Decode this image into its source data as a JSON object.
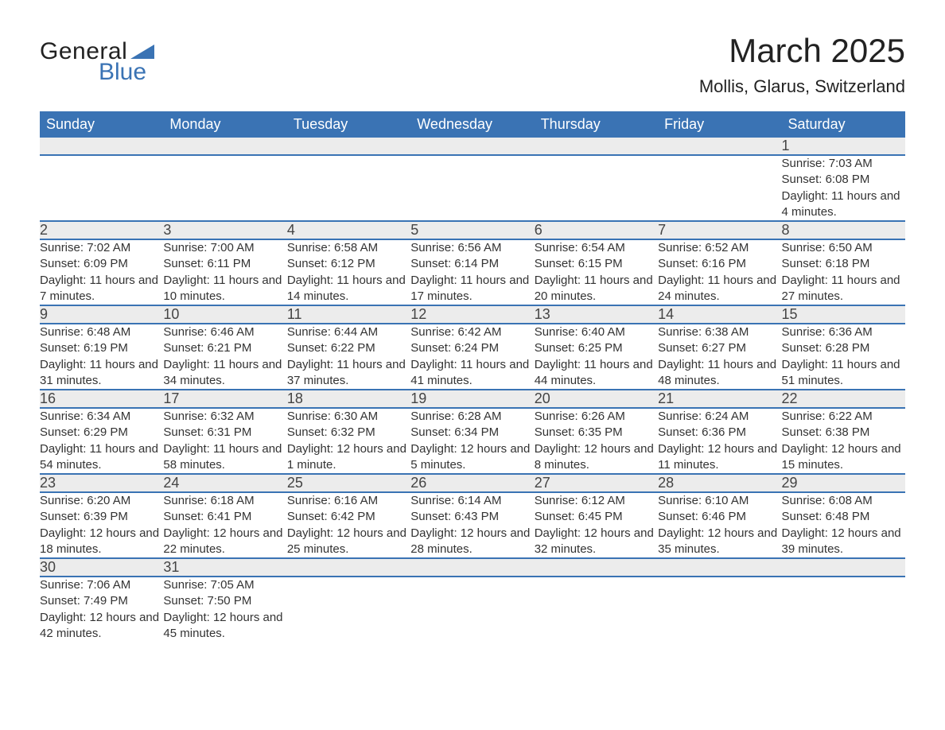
{
  "logo": {
    "text1": "General",
    "text2": "Blue",
    "accent_color": "#3a73b4"
  },
  "title": "March 2025",
  "location": "Mollis, Glarus, Switzerland",
  "colors": {
    "header_bg": "#3a73b4",
    "header_text": "#ffffff",
    "daynum_bg": "#ececec",
    "border": "#3a73b4",
    "text": "#333333"
  },
  "font": {
    "family": "Arial",
    "th_size": 18,
    "title_size": 42,
    "location_size": 22,
    "body_size": 15
  },
  "weekdays": [
    "Sunday",
    "Monday",
    "Tuesday",
    "Wednesday",
    "Thursday",
    "Friday",
    "Saturday"
  ],
  "weeks": [
    [
      null,
      null,
      null,
      null,
      null,
      null,
      {
        "n": "1",
        "sr": "Sunrise: 7:03 AM",
        "ss": "Sunset: 6:08 PM",
        "dl": "Daylight: 11 hours and 4 minutes."
      }
    ],
    [
      {
        "n": "2",
        "sr": "Sunrise: 7:02 AM",
        "ss": "Sunset: 6:09 PM",
        "dl": "Daylight: 11 hours and 7 minutes."
      },
      {
        "n": "3",
        "sr": "Sunrise: 7:00 AM",
        "ss": "Sunset: 6:11 PM",
        "dl": "Daylight: 11 hours and 10 minutes."
      },
      {
        "n": "4",
        "sr": "Sunrise: 6:58 AM",
        "ss": "Sunset: 6:12 PM",
        "dl": "Daylight: 11 hours and 14 minutes."
      },
      {
        "n": "5",
        "sr": "Sunrise: 6:56 AM",
        "ss": "Sunset: 6:14 PM",
        "dl": "Daylight: 11 hours and 17 minutes."
      },
      {
        "n": "6",
        "sr": "Sunrise: 6:54 AM",
        "ss": "Sunset: 6:15 PM",
        "dl": "Daylight: 11 hours and 20 minutes."
      },
      {
        "n": "7",
        "sr": "Sunrise: 6:52 AM",
        "ss": "Sunset: 6:16 PM",
        "dl": "Daylight: 11 hours and 24 minutes."
      },
      {
        "n": "8",
        "sr": "Sunrise: 6:50 AM",
        "ss": "Sunset: 6:18 PM",
        "dl": "Daylight: 11 hours and 27 minutes."
      }
    ],
    [
      {
        "n": "9",
        "sr": "Sunrise: 6:48 AM",
        "ss": "Sunset: 6:19 PM",
        "dl": "Daylight: 11 hours and 31 minutes."
      },
      {
        "n": "10",
        "sr": "Sunrise: 6:46 AM",
        "ss": "Sunset: 6:21 PM",
        "dl": "Daylight: 11 hours and 34 minutes."
      },
      {
        "n": "11",
        "sr": "Sunrise: 6:44 AM",
        "ss": "Sunset: 6:22 PM",
        "dl": "Daylight: 11 hours and 37 minutes."
      },
      {
        "n": "12",
        "sr": "Sunrise: 6:42 AM",
        "ss": "Sunset: 6:24 PM",
        "dl": "Daylight: 11 hours and 41 minutes."
      },
      {
        "n": "13",
        "sr": "Sunrise: 6:40 AM",
        "ss": "Sunset: 6:25 PM",
        "dl": "Daylight: 11 hours and 44 minutes."
      },
      {
        "n": "14",
        "sr": "Sunrise: 6:38 AM",
        "ss": "Sunset: 6:27 PM",
        "dl": "Daylight: 11 hours and 48 minutes."
      },
      {
        "n": "15",
        "sr": "Sunrise: 6:36 AM",
        "ss": "Sunset: 6:28 PM",
        "dl": "Daylight: 11 hours and 51 minutes."
      }
    ],
    [
      {
        "n": "16",
        "sr": "Sunrise: 6:34 AM",
        "ss": "Sunset: 6:29 PM",
        "dl": "Daylight: 11 hours and 54 minutes."
      },
      {
        "n": "17",
        "sr": "Sunrise: 6:32 AM",
        "ss": "Sunset: 6:31 PM",
        "dl": "Daylight: 11 hours and 58 minutes."
      },
      {
        "n": "18",
        "sr": "Sunrise: 6:30 AM",
        "ss": "Sunset: 6:32 PM",
        "dl": "Daylight: 12 hours and 1 minute."
      },
      {
        "n": "19",
        "sr": "Sunrise: 6:28 AM",
        "ss": "Sunset: 6:34 PM",
        "dl": "Daylight: 12 hours and 5 minutes."
      },
      {
        "n": "20",
        "sr": "Sunrise: 6:26 AM",
        "ss": "Sunset: 6:35 PM",
        "dl": "Daylight: 12 hours and 8 minutes."
      },
      {
        "n": "21",
        "sr": "Sunrise: 6:24 AM",
        "ss": "Sunset: 6:36 PM",
        "dl": "Daylight: 12 hours and 11 minutes."
      },
      {
        "n": "22",
        "sr": "Sunrise: 6:22 AM",
        "ss": "Sunset: 6:38 PM",
        "dl": "Daylight: 12 hours and 15 minutes."
      }
    ],
    [
      {
        "n": "23",
        "sr": "Sunrise: 6:20 AM",
        "ss": "Sunset: 6:39 PM",
        "dl": "Daylight: 12 hours and 18 minutes."
      },
      {
        "n": "24",
        "sr": "Sunrise: 6:18 AM",
        "ss": "Sunset: 6:41 PM",
        "dl": "Daylight: 12 hours and 22 minutes."
      },
      {
        "n": "25",
        "sr": "Sunrise: 6:16 AM",
        "ss": "Sunset: 6:42 PM",
        "dl": "Daylight: 12 hours and 25 minutes."
      },
      {
        "n": "26",
        "sr": "Sunrise: 6:14 AM",
        "ss": "Sunset: 6:43 PM",
        "dl": "Daylight: 12 hours and 28 minutes."
      },
      {
        "n": "27",
        "sr": "Sunrise: 6:12 AM",
        "ss": "Sunset: 6:45 PM",
        "dl": "Daylight: 12 hours and 32 minutes."
      },
      {
        "n": "28",
        "sr": "Sunrise: 6:10 AM",
        "ss": "Sunset: 6:46 PM",
        "dl": "Daylight: 12 hours and 35 minutes."
      },
      {
        "n": "29",
        "sr": "Sunrise: 6:08 AM",
        "ss": "Sunset: 6:48 PM",
        "dl": "Daylight: 12 hours and 39 minutes."
      }
    ],
    [
      {
        "n": "30",
        "sr": "Sunrise: 7:06 AM",
        "ss": "Sunset: 7:49 PM",
        "dl": "Daylight: 12 hours and 42 minutes."
      },
      {
        "n": "31",
        "sr": "Sunrise: 7:05 AM",
        "ss": "Sunset: 7:50 PM",
        "dl": "Daylight: 12 hours and 45 minutes."
      },
      null,
      null,
      null,
      null,
      null
    ]
  ]
}
